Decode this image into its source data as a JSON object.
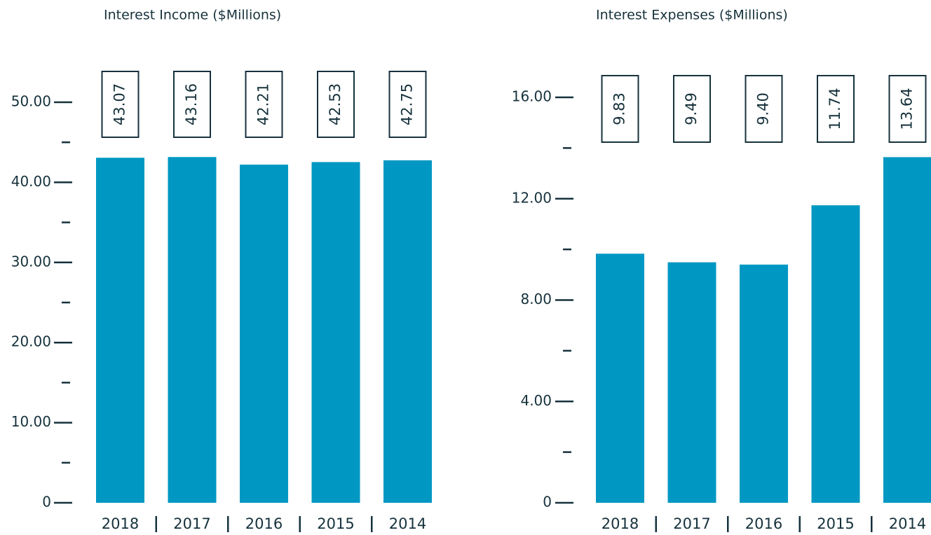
{
  "chart_data": [
    {
      "type": "bar",
      "title": "Interest Income ($Millions)",
      "categories": [
        "2018",
        "2017",
        "2016",
        "2015",
        "2014"
      ],
      "values": [
        43.07,
        43.16,
        42.21,
        42.53,
        42.75
      ],
      "color": "#0098c3",
      "ylim": [
        0,
        50
      ],
      "yticks": [
        0,
        {
          "value": 10,
          "label": "10.00"
        },
        {
          "value": 20,
          "label": "20.00"
        },
        {
          "value": 30,
          "label": "30.00"
        },
        {
          "value": 40,
          "label": "40.00"
        },
        {
          "value": 50,
          "label": "50.00"
        }
      ],
      "minor_yticks": [
        5,
        15,
        25,
        35,
        45
      ]
    },
    {
      "type": "bar",
      "title": "Interest Expenses ($Millions)",
      "categories": [
        "2018",
        "2017",
        "2016",
        "2015",
        "2014"
      ],
      "values": [
        9.83,
        9.49,
        9.4,
        11.74,
        13.64
      ],
      "value_labels": [
        "9.83",
        "9.49",
        "9.40",
        "11.74",
        "13.64"
      ],
      "color": "#0098c3",
      "ylim": [
        0,
        16
      ],
      "yticks": [
        0,
        {
          "value": 4,
          "label": "4.00"
        },
        {
          "value": 8,
          "label": "8.00"
        },
        {
          "value": 12,
          "label": "12.00"
        },
        {
          "value": 16,
          "label": "16.00"
        }
      ],
      "minor_yticks": [
        2,
        6,
        10,
        14
      ]
    }
  ]
}
